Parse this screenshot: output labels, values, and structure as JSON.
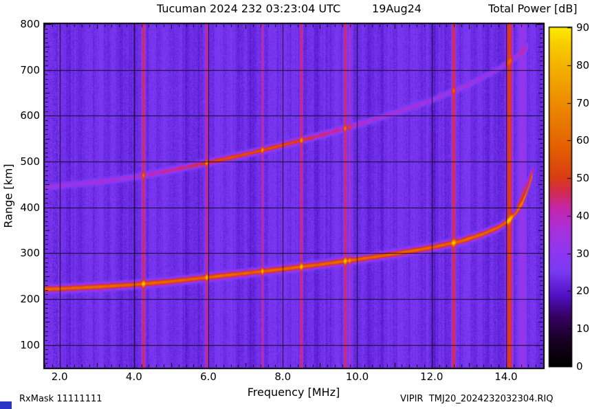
{
  "header": {
    "title": "Tucuman 2024 232 03:23:04 UTC",
    "date_label": "19Aug24",
    "colorbar_title": "Total Power [dB]"
  },
  "footer": {
    "rx_mask": "RxMask 11111111",
    "file_label": "VIPIR  TMJ20_2024232032304.RIQ"
  },
  "axes": {
    "x": {
      "title": "Frequency [MHz]",
      "tick_values": [
        2,
        4,
        6,
        8,
        10,
        12,
        14
      ],
      "tick_labels": [
        "2.0",
        "4.0",
        "6.0",
        "8.0",
        "10.0",
        "12.0",
        "14.0"
      ]
    },
    "y": {
      "title": "Range [km]",
      "tick_values": [
        100,
        200,
        300,
        400,
        500,
        600,
        700,
        800
      ],
      "tick_labels": [
        "100",
        "200",
        "300",
        "400",
        "500",
        "600",
        "700",
        "800"
      ]
    },
    "colorbar": {
      "title": "Total Power [dB]",
      "tick_values": [
        0,
        10,
        20,
        30,
        40,
        50,
        60,
        70,
        80,
        90
      ],
      "tick_labels": [
        "0",
        "10",
        "20",
        "30",
        "40",
        "50",
        "60",
        "70",
        "80",
        "90"
      ]
    }
  },
  "chart_data": {
    "type": "heatmap",
    "title": "Tucuman 2024 232 03:23:04 UTC",
    "date": "19Aug24",
    "xlabel": "Frequency [MHz]",
    "ylabel": "Range [km]",
    "zlabel": "Total Power [dB]",
    "xlim": [
      1.6,
      15.0
    ],
    "ylim": [
      50,
      800
    ],
    "zlim": [
      0,
      90
    ],
    "x_minor_step_mhz": 0.2,
    "y_minor_step_km": 10,
    "grid": true,
    "background_noise_db": 23.5,
    "critical_frequency_mhz": 14.8,
    "colormap_stops": [
      [
        0,
        "#000000"
      ],
      [
        7,
        "#1a0026"
      ],
      [
        13,
        "#360063"
      ],
      [
        19,
        "#5213c8"
      ],
      [
        25,
        "#7a3af3"
      ],
      [
        31,
        "#9137ef"
      ],
      [
        37,
        "#ad2fd8"
      ],
      [
        42,
        "#c626a8"
      ],
      [
        46,
        "#d22a55"
      ],
      [
        50,
        "#d93d14"
      ],
      [
        57,
        "#e25c02"
      ],
      [
        65,
        "#ea7a00"
      ],
      [
        73,
        "#f09700"
      ],
      [
        80,
        "#f5b300"
      ],
      [
        86,
        "#f9cf00"
      ],
      [
        90,
        "#ffec00"
      ]
    ],
    "traces": [
      {
        "name": "F-region echo first hop",
        "peak_power_db": 61,
        "width_km": 9,
        "points": [
          [
            1.6,
            221
          ],
          [
            2,
            222
          ],
          [
            3,
            226
          ],
          [
            4,
            231
          ],
          [
            5,
            238
          ],
          [
            6,
            247
          ],
          [
            7,
            256
          ],
          [
            8,
            265
          ],
          [
            9,
            275
          ],
          [
            10,
            286
          ],
          [
            11,
            298
          ],
          [
            12,
            312
          ],
          [
            12.8,
            326
          ],
          [
            13.4,
            342
          ],
          [
            13.8,
            356
          ],
          [
            14.1,
            372
          ],
          [
            14.3,
            390
          ],
          [
            14.45,
            410
          ],
          [
            14.55,
            430
          ],
          [
            14.65,
            452
          ],
          [
            14.72,
            470
          ]
        ]
      },
      {
        "name": "spread branch near foF2",
        "peak_power_db": 45,
        "width_km": 9,
        "points": [
          [
            14.3,
            398
          ],
          [
            14.45,
            426
          ],
          [
            14.55,
            446
          ],
          [
            14.65,
            466
          ],
          [
            14.75,
            483
          ]
        ]
      },
      {
        "name": "second hop echo",
        "peak_power_db": 34,
        "width_km": 8,
        "points": [
          [
            1.6,
            443
          ],
          [
            2,
            447
          ],
          [
            3,
            455
          ],
          [
            4,
            466
          ],
          [
            5,
            481
          ],
          [
            6,
            498
          ],
          [
            7,
            516
          ],
          [
            8,
            536
          ],
          [
            9,
            557
          ],
          [
            10,
            580
          ],
          [
            11,
            606
          ],
          [
            12,
            634
          ],
          [
            13,
            668
          ],
          [
            13.8,
            702
          ],
          [
            14.3,
            730
          ],
          [
            14.6,
            752
          ]
        ],
        "bright_segment": {
          "center_mhz": 7.2,
          "width_mhz": 1.7,
          "extra_power_db": 22
        }
      }
    ],
    "rfi_lines": [
      {
        "freq_mhz": 4.25,
        "power_db": 48,
        "width_mhz": 0.05
      },
      {
        "freq_mhz": 5.95,
        "power_db": 46,
        "width_mhz": 0.04
      },
      {
        "freq_mhz": 7.45,
        "power_db": 45,
        "width_mhz": 0.035
      },
      {
        "freq_mhz": 8.5,
        "power_db": 47,
        "width_mhz": 0.045
      },
      {
        "freq_mhz": 9.68,
        "power_db": 48,
        "width_mhz": 0.045
      },
      {
        "freq_mhz": 9.8,
        "power_db": 41,
        "width_mhz": 0.03
      },
      {
        "freq_mhz": 12.6,
        "power_db": 49,
        "width_mhz": 0.06
      },
      {
        "freq_mhz": 14.1,
        "power_db": 52,
        "width_mhz": 0.09
      },
      {
        "freq_mhz": 14.45,
        "power_db": 33,
        "width_mhz": 0.16
      }
    ]
  }
}
